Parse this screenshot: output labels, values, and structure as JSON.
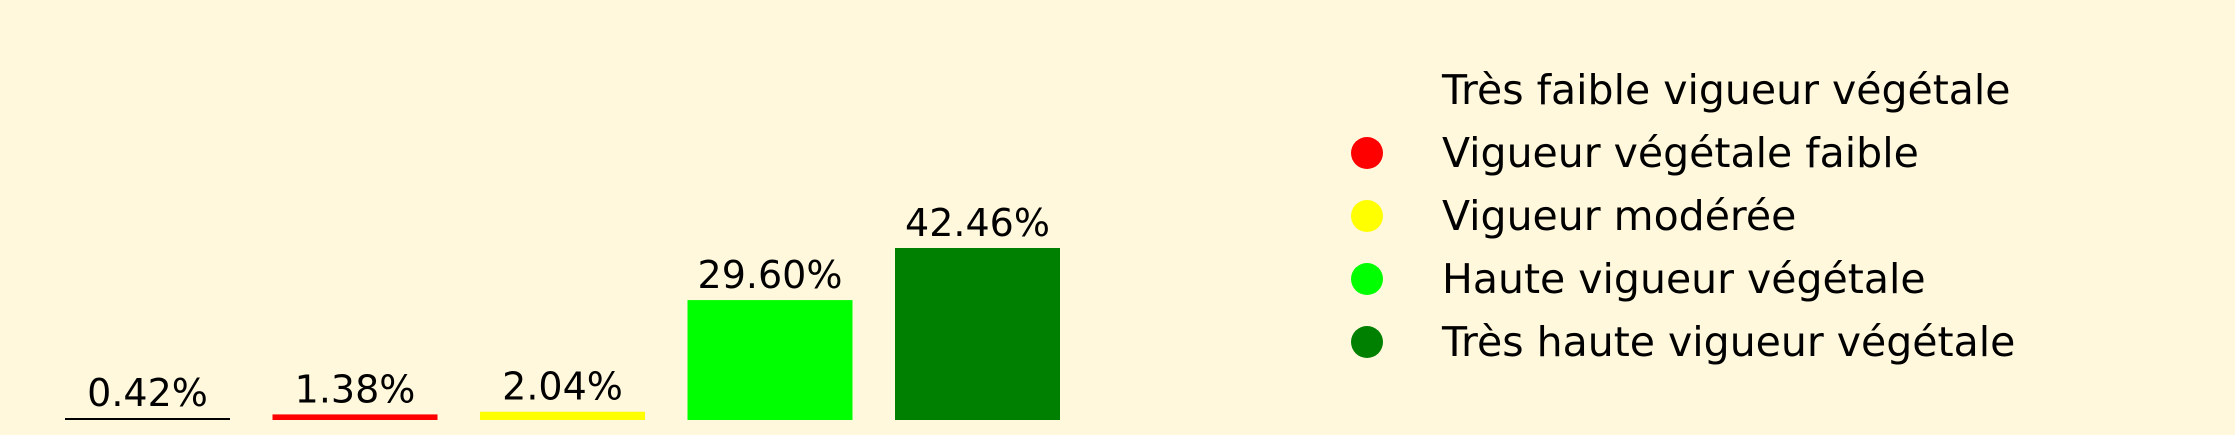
{
  "chart_data": {
    "type": "bar",
    "categories": [
      "Très faible vigueur végétale",
      "Vigueur végétale faible",
      "Vigueur modérée",
      "Haute vigueur végétale",
      "Très haute vigueur végétale"
    ],
    "values": [
      0.42,
      1.38,
      2.04,
      29.6,
      42.46
    ],
    "value_labels": [
      "0.42%",
      "1.38%",
      "2.04%",
      "29.60%",
      "42.46%"
    ],
    "colors": [
      "#000000",
      "#FF0000",
      "#FFFF00",
      "#00FF00",
      "#008000"
    ],
    "ylim": [
      0,
      42.46
    ],
    "grid": false,
    "legend_position": "right",
    "background": "#FFF8DC"
  }
}
